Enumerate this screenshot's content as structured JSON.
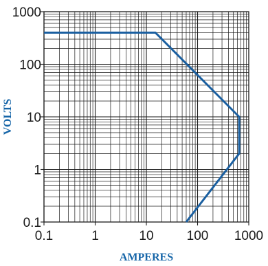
{
  "chart_data": {
    "type": "line",
    "title": "",
    "xlabel": "AMPERES",
    "ylabel": "VOLTS",
    "x_scale": "log",
    "y_scale": "log",
    "xlim": [
      0.1,
      1000
    ],
    "ylim": [
      0.1,
      1000
    ],
    "x_ticks": [
      "0.1",
      "1",
      "10",
      "100",
      "1000"
    ],
    "y_ticks": [
      "0.1",
      "1",
      "10",
      "100",
      "1000"
    ],
    "grid": true,
    "line_color": "#1a5fa0",
    "axis_label_color": "#1565a8",
    "series": [
      {
        "name": "",
        "points": [
          {
            "x": 0.1,
            "y": 400
          },
          {
            "x": 15,
            "y": 400
          },
          {
            "x": 650,
            "y": 10
          },
          {
            "x": 650,
            "y": 2
          },
          {
            "x": 60,
            "y": 0.1
          }
        ]
      }
    ]
  }
}
